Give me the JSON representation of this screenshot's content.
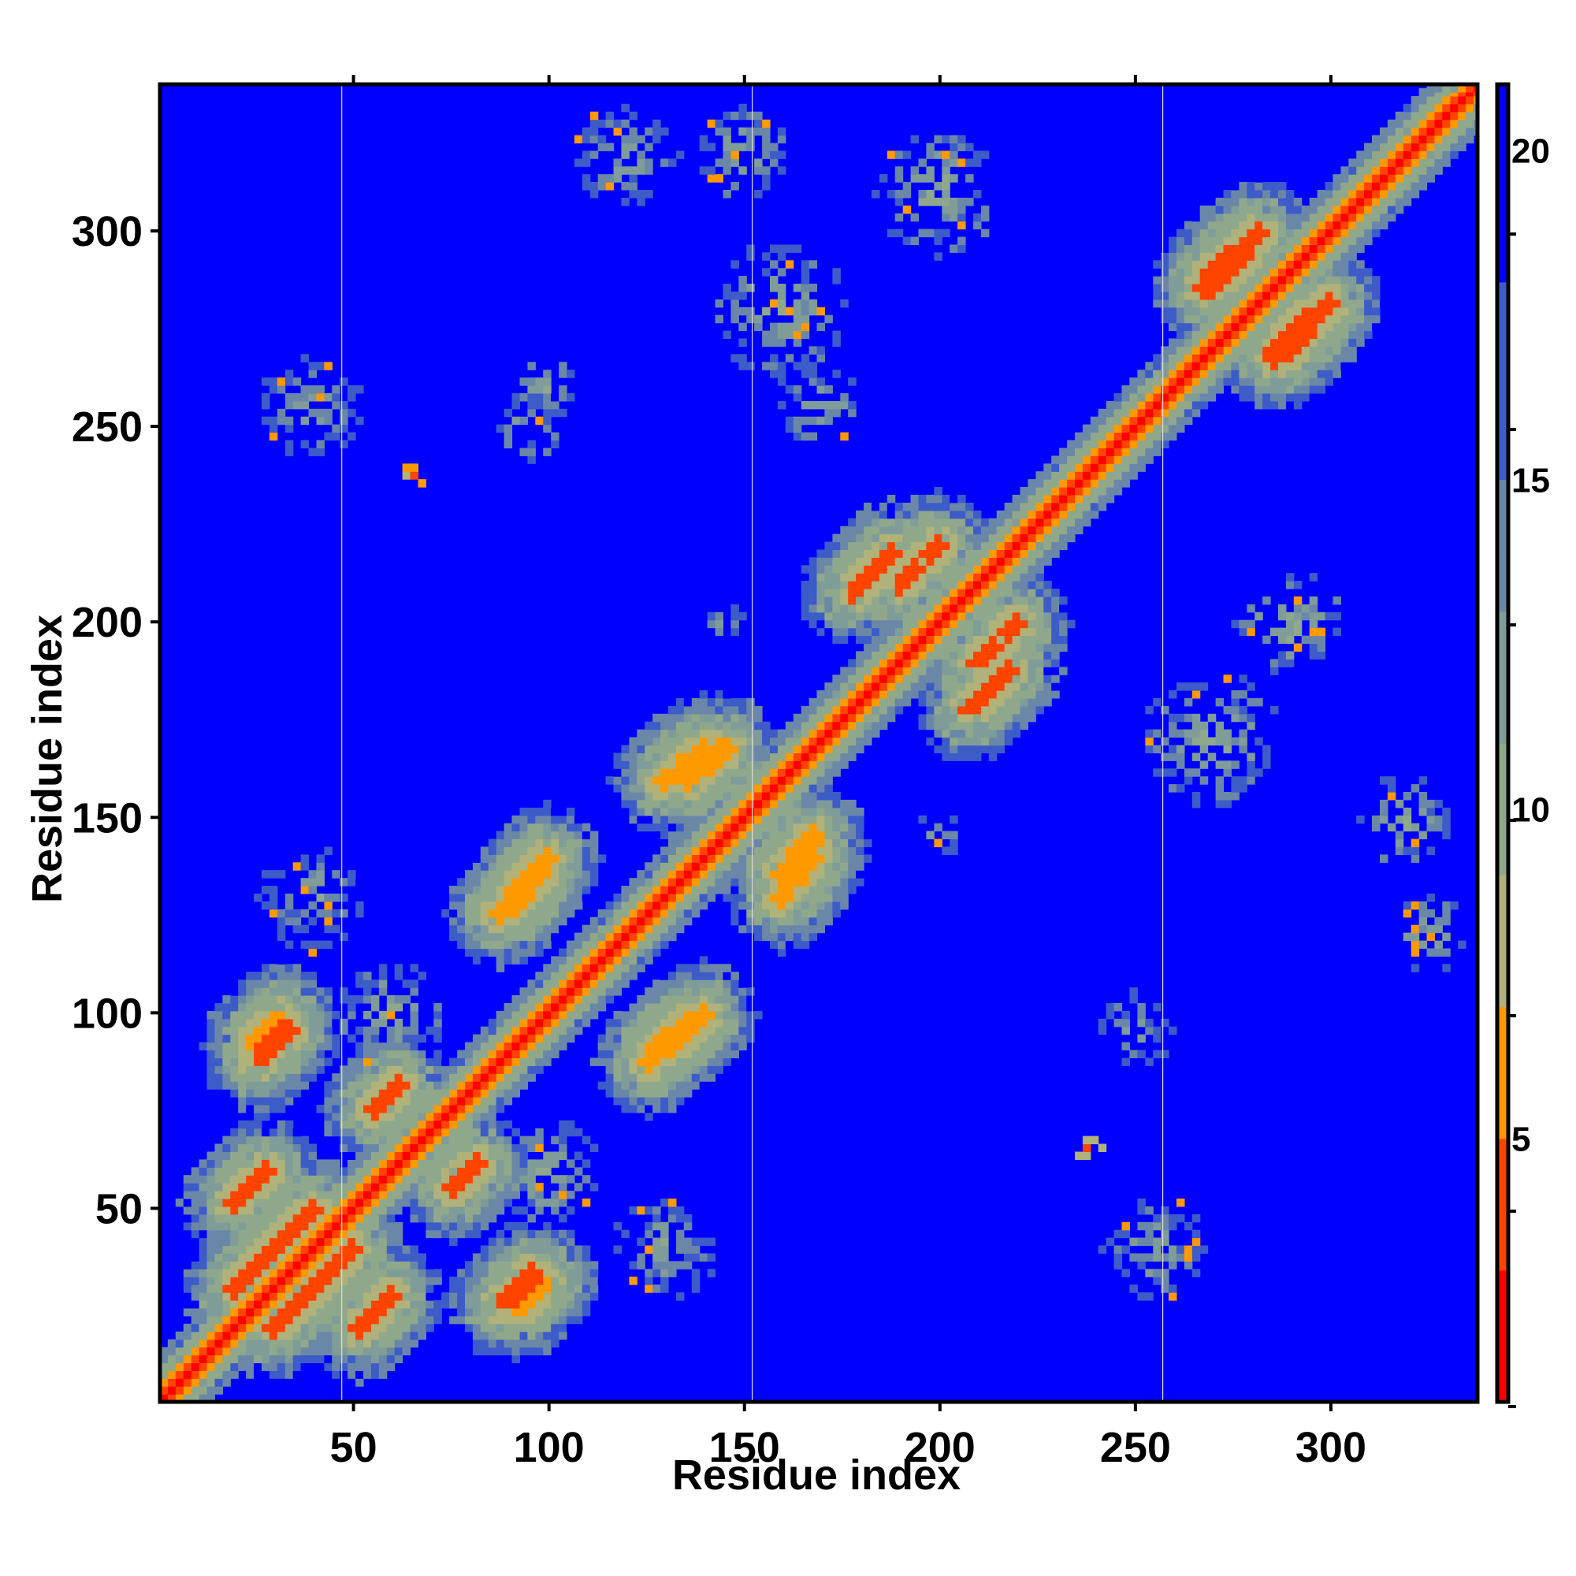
{
  "chart_data": {
    "type": "heatmap",
    "title": "",
    "xlabel": "Residue index",
    "ylabel": "Residue index",
    "n_residues": 337,
    "xlim": [
      1,
      337
    ],
    "ylim": [
      1,
      337
    ],
    "x_ticks": [
      50,
      100,
      150,
      200,
      250,
      300
    ],
    "y_ticks": [
      50,
      100,
      150,
      200,
      250,
      300
    ],
    "x_tick_labels": [
      "50",
      "100",
      "150",
      "200",
      "250",
      "300"
    ],
    "y_tick_labels": [
      "50",
      "100",
      "150",
      "200",
      "250",
      "300"
    ],
    "colorbar": {
      "min": 1,
      "max": 21,
      "ticks": [
        5,
        10,
        15,
        20
      ],
      "tick_labels": [
        "5",
        "10",
        "15",
        "20"
      ],
      "position": "right",
      "colors": [
        "#ff0000",
        "#ff3300",
        "#ff6600",
        "#ff9900",
        "#9aae8a",
        "#8fa58f",
        "#6f88a0",
        "#4060b0",
        "#0000ff"
      ]
    },
    "background_value": 21,
    "symmetric": true,
    "gap_columns": [
      47,
      152,
      257
    ],
    "contact_features": [
      {
        "type": "diagonal",
        "from": 1,
        "to": 337,
        "value": 2
      },
      {
        "type": "helix-contact",
        "i_from": 20,
        "i_to": 40,
        "j_from": 30,
        "j_to": 50,
        "value": 5
      },
      {
        "type": "helix-contact",
        "i_from": 52,
        "i_to": 60,
        "j_from": 20,
        "j_to": 28,
        "value": 5
      },
      {
        "type": "helix-contact",
        "i_from": 55,
        "i_to": 62,
        "j_from": 75,
        "j_to": 82,
        "value": 5
      },
      {
        "type": "helix-contact",
        "i_from": 25,
        "i_to": 32,
        "j_from": 92,
        "j_to": 99,
        "value": 6
      },
      {
        "type": "helix-contact",
        "i_from": 88,
        "i_to": 96,
        "j_from": 25,
        "j_to": 33,
        "value": 5
      },
      {
        "type": "helix-contact",
        "i_from": 92,
        "i_to": 100,
        "j_from": 128,
        "j_to": 140,
        "value": 6
      },
      {
        "type": "helix-contact",
        "i_from": 125,
        "i_to": 135,
        "j_from": 88,
        "j_to": 96,
        "value": 6
      },
      {
        "type": "helix-contact",
        "i_from": 135,
        "i_to": 145,
        "j_from": 160,
        "j_to": 168,
        "value": 6
      },
      {
        "type": "helix-contact",
        "i_from": 160,
        "i_to": 168,
        "j_from": 130,
        "j_to": 140,
        "value": 6
      },
      {
        "type": "helix-contact",
        "i_from": 190,
        "i_to": 200,
        "j_from": 210,
        "j_to": 220,
        "value": 5
      },
      {
        "type": "helix-contact",
        "i_from": 208,
        "i_to": 218,
        "j_from": 178,
        "j_to": 188,
        "value": 5
      },
      {
        "type": "helix-contact",
        "i_from": 270,
        "i_to": 282,
        "j_from": 290,
        "j_to": 300,
        "value": 5
      },
      {
        "type": "helix-contact",
        "i_from": 285,
        "i_to": 295,
        "j_from": 268,
        "j_to": 278,
        "value": 5
      },
      {
        "type": "contact-patch",
        "cx": 40,
        "cy": 255,
        "r": 14,
        "value": 12
      },
      {
        "type": "contact-patch",
        "cx": 65,
        "cy": 238,
        "r": 3,
        "value": 4
      },
      {
        "type": "contact-patch",
        "cx": 100,
        "cy": 260,
        "r": 8,
        "value": 11
      },
      {
        "type": "contact-patch",
        "cx": 120,
        "cy": 320,
        "r": 14,
        "value": 12
      },
      {
        "type": "contact-patch",
        "cx": 150,
        "cy": 320,
        "r": 12,
        "value": 11
      },
      {
        "type": "contact-patch",
        "cx": 160,
        "cy": 280,
        "r": 18,
        "value": 11
      },
      {
        "type": "contact-patch",
        "cx": 200,
        "cy": 310,
        "r": 16,
        "value": 11
      },
      {
        "type": "contact-patch",
        "cx": 170,
        "cy": 255,
        "r": 10,
        "value": 11
      },
      {
        "type": "contact-patch",
        "cx": 255,
        "cy": 40,
        "r": 14,
        "value": 12
      },
      {
        "type": "contact-patch",
        "cx": 238,
        "cy": 65,
        "r": 3,
        "value": 4
      },
      {
        "type": "contact-patch",
        "cx": 270,
        "cy": 170,
        "r": 18,
        "value": 11
      },
      {
        "type": "contact-patch",
        "cx": 290,
        "cy": 200,
        "r": 14,
        "value": 11
      },
      {
        "type": "contact-patch",
        "cx": 320,
        "cy": 150,
        "r": 12,
        "value": 11
      },
      {
        "type": "contact-patch",
        "cx": 325,
        "cy": 120,
        "r": 10,
        "value": 11
      },
      {
        "type": "contact-patch",
        "cx": 200,
        "cy": 145,
        "r": 6,
        "value": 12
      },
      {
        "type": "contact-patch",
        "cx": 145,
        "cy": 200,
        "r": 6,
        "value": 12
      },
      {
        "type": "contact-patch",
        "cx": 100,
        "cy": 60,
        "r": 14,
        "value": 11
      },
      {
        "type": "contact-patch",
        "cx": 60,
        "cy": 100,
        "r": 14,
        "value": 11
      },
      {
        "type": "contact-patch",
        "cx": 130,
        "cy": 40,
        "r": 14,
        "value": 12
      },
      {
        "type": "contact-patch",
        "cx": 40,
        "cy": 130,
        "r": 14,
        "value": 12
      },
      {
        "type": "contact-patch",
        "cx": 250,
        "cy": 95,
        "r": 10,
        "value": 12
      },
      {
        "type": "contact-patch",
        "cx": 95,
        "cy": 250,
        "r": 10,
        "value": 12
      }
    ]
  }
}
